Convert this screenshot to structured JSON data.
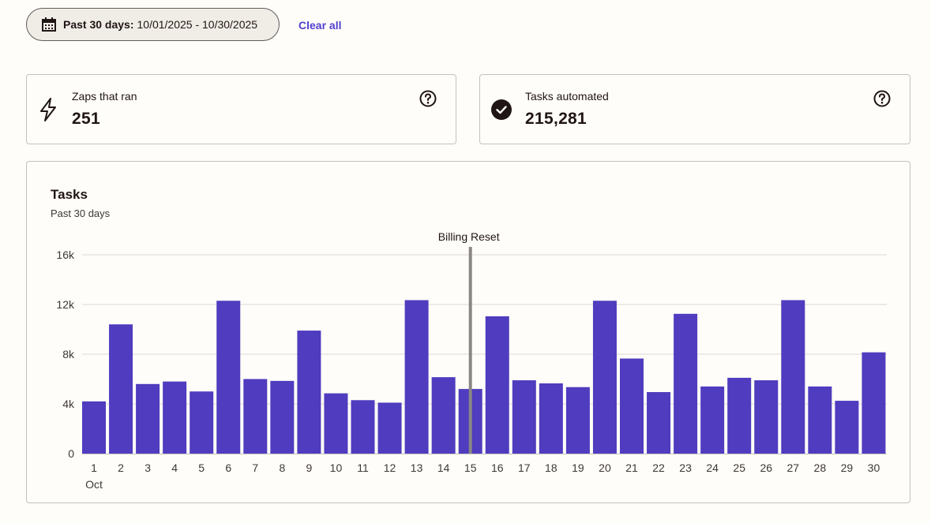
{
  "filter": {
    "range_label": "Past 30 days:",
    "range_value": "10/01/2025 - 10/30/2025",
    "clear_label": "Clear all"
  },
  "stats": [
    {
      "label": "Zaps that ran",
      "value": "251",
      "icon": "lightning-icon"
    },
    {
      "label": "Tasks automated",
      "value": "215,281",
      "icon": "check-circle-icon"
    }
  ],
  "chart": {
    "title": "Tasks",
    "subtitle": "Past 30 days"
  },
  "colors": {
    "bar": "#4f3cbf",
    "accent": "#503fd0",
    "marker": "#8a8784"
  },
  "chart_data": {
    "type": "bar",
    "title": "Tasks",
    "subtitle": "Past 30 days",
    "categories": [
      "1",
      "2",
      "3",
      "4",
      "5",
      "6",
      "7",
      "8",
      "9",
      "10",
      "11",
      "12",
      "13",
      "14",
      "15",
      "16",
      "17",
      "18",
      "19",
      "20",
      "21",
      "22",
      "23",
      "24",
      "25",
      "26",
      "27",
      "28",
      "29",
      "30"
    ],
    "x_sublabel": "Oct",
    "values": [
      4200,
      10400,
      5600,
      5800,
      5000,
      12300,
      6000,
      5850,
      9900,
      4850,
      4300,
      4100,
      12350,
      6150,
      5200,
      11050,
      5900,
      5650,
      5350,
      12300,
      7650,
      4950,
      11250,
      5400,
      6100,
      5900,
      12350,
      5400,
      4250,
      8150
    ],
    "yticks": [
      "0",
      "4k",
      "8k",
      "12k",
      "16k"
    ],
    "ytick_values": [
      0,
      4000,
      8000,
      12000,
      16000
    ],
    "ylim": [
      0,
      16000
    ],
    "grid": true,
    "annotation": {
      "label": "Billing Reset",
      "category": "15"
    }
  }
}
